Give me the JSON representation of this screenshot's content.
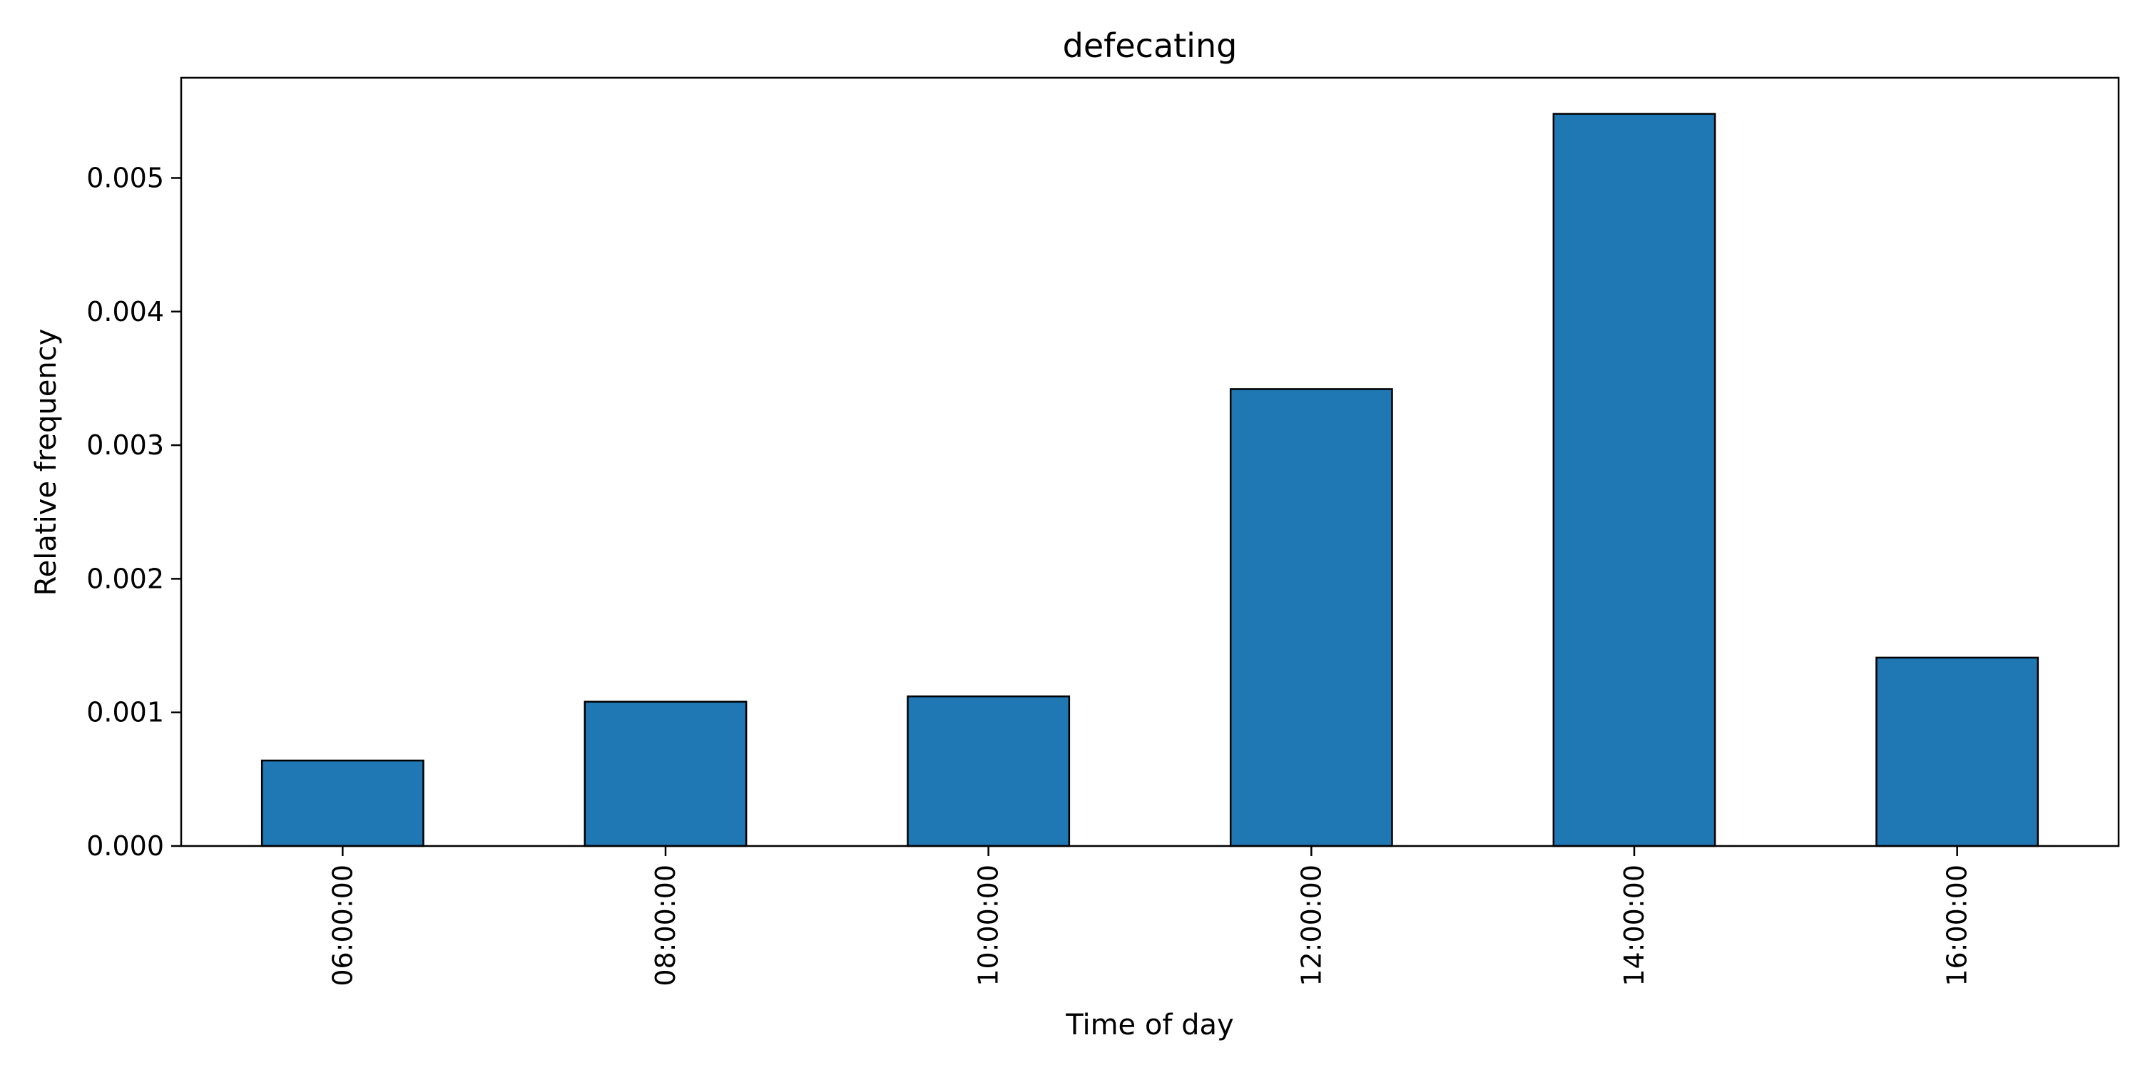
{
  "chart_data": {
    "type": "bar",
    "title": "defecating",
    "xlabel": "Time of day",
    "ylabel": "Relative frequency",
    "categories": [
      "06:00:00",
      "08:00:00",
      "10:00:00",
      "12:00:00",
      "14:00:00",
      "16:00:00"
    ],
    "values": [
      0.00064,
      0.00108,
      0.00112,
      0.00342,
      0.00548,
      0.00141
    ],
    "ylim": [
      0,
      0.00575
    ],
    "yticks": [
      "0.000",
      "0.001",
      "0.002",
      "0.003",
      "0.004",
      "0.005"
    ],
    "ytick_values": [
      0,
      0.001,
      0.002,
      0.003,
      0.004,
      0.005
    ],
    "grid": false,
    "legend": "none",
    "colors": {
      "bar": "#1f77b4",
      "edge": "#000000"
    }
  }
}
